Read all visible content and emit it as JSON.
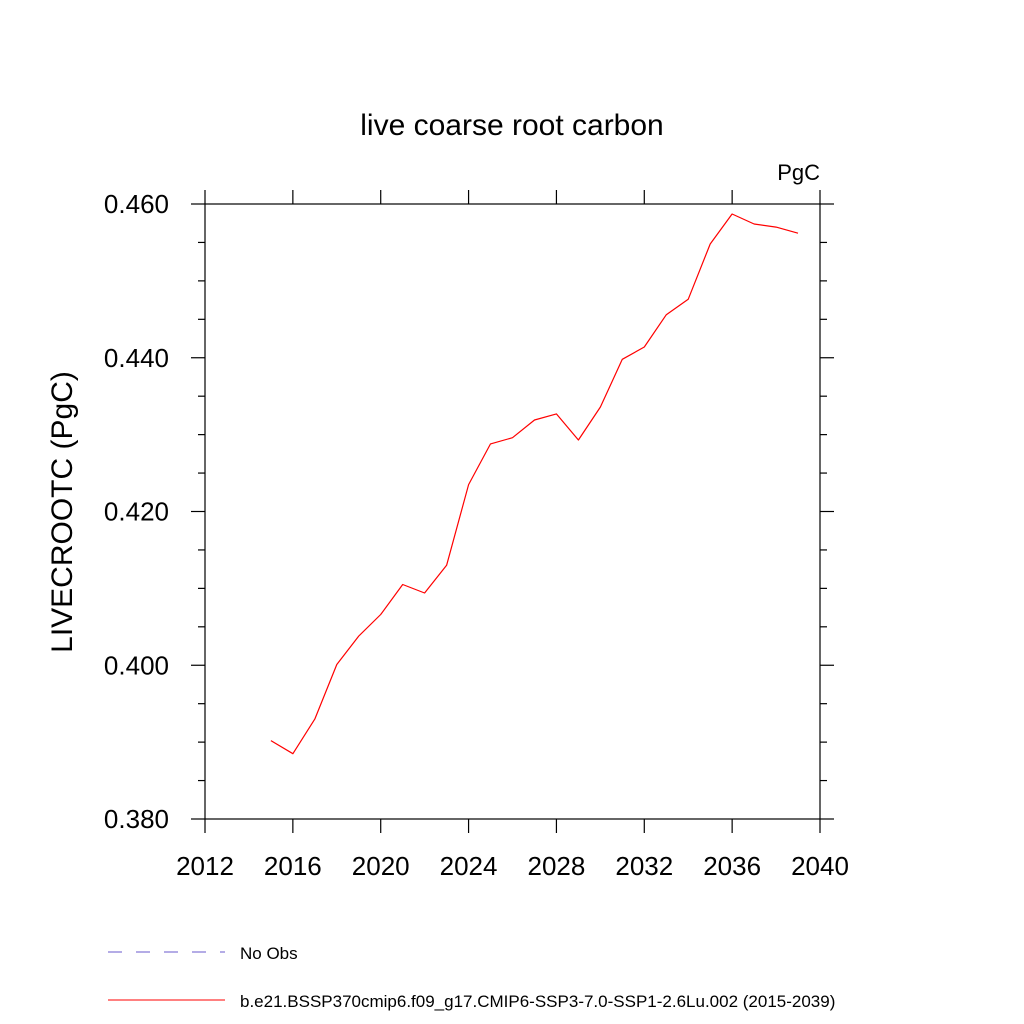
{
  "chart_data": {
    "type": "line",
    "title": "live coarse root carbon",
    "units_label": "PgC",
    "ylabel": "LIVECROOTC  (PgC)",
    "xlabel": "",
    "xlim": [
      2012,
      2040
    ],
    "ylim": [
      0.38,
      0.46
    ],
    "x_ticks": [
      2012,
      2016,
      2020,
      2024,
      2028,
      2032,
      2036,
      2040
    ],
    "y_ticks": [
      0.38,
      0.4,
      0.42,
      0.44,
      0.46
    ],
    "x_tick_labels": [
      "2012",
      "2016",
      "2020",
      "2024",
      "2028",
      "2032",
      "2036",
      "2040"
    ],
    "y_tick_labels": [
      "0.380",
      "0.400",
      "0.420",
      "0.440",
      "0.460"
    ],
    "grid": false,
    "legend_position": "bottom",
    "series": [
      {
        "name": "b.e21.BSSP370cmip6.f09_g17.CMIP6-SSP3-7.0-SSP1-2.6Lu.002 (2015-2039)",
        "color": "#ff0000",
        "style": "solid",
        "x": [
          2015,
          2016,
          2017,
          2018,
          2019,
          2020,
          2021,
          2022,
          2023,
          2024,
          2025,
          2026,
          2027,
          2028,
          2029,
          2030,
          2031,
          2032,
          2033,
          2034,
          2035,
          2036,
          2037,
          2038,
          2039
        ],
        "values": [
          0.3902,
          0.3885,
          0.393,
          0.4001,
          0.4038,
          0.4066,
          0.4105,
          0.4094,
          0.413,
          0.4235,
          0.4288,
          0.4296,
          0.4319,
          0.4327,
          0.4293,
          0.4336,
          0.4398,
          0.4414,
          0.4456,
          0.4476,
          0.4548,
          0.4587,
          0.4574,
          0.457,
          0.4562
        ]
      }
    ],
    "legend": [
      {
        "label": "No Obs",
        "color": "#6a5acd",
        "style": "dashed"
      },
      {
        "label": "b.e21.BSSP370cmip6.f09_g17.CMIP6-SSP3-7.0-SSP1-2.6Lu.002 (2015-2039)",
        "color": "#ff0000",
        "style": "solid"
      }
    ]
  }
}
